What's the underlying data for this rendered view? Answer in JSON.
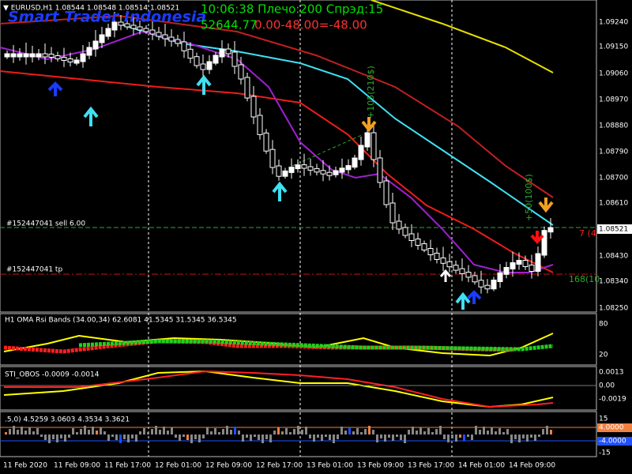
{
  "header": {
    "symbol": "▼ EURUSD,H1  1.08544 1.08548 1.08514 1.08521",
    "brand": "Smart Trader Indonesia",
    "server_info": "10:06:38 Плечо:200 Спрэд:15",
    "balance": "52644.77",
    "profit": "0.00-48.00=-48.00"
  },
  "orders": {
    "sell": "#152447041 sell 6.00",
    "tp": "#152447041 tp",
    "sell_right": "7 (4",
    "tp_right": "168(10"
  },
  "annotations": [
    "+105(210$)",
    "+50(100$)"
  ],
  "price_axis": [
    "1.09240",
    "1.09150",
    "1.09060",
    "1.08970",
    "1.08880",
    "1.08790",
    "1.08700",
    "1.08610",
    "1.08521",
    "1.08430",
    "1.08340",
    "1.08250"
  ],
  "panels": [
    {
      "label": "H1 OMA Rsi Bands (34.00,34) 62.6081 41.5345 31.5345 36.5345",
      "axis": [
        "80",
        "20"
      ]
    },
    {
      "label": "STI_OBOS -0.0009 -0.0014",
      "axis": [
        "0.0013",
        "0.00",
        "-0.0019"
      ]
    },
    {
      "label": ".5,0) 4.5259 3.0603 4.3534 3.3621",
      "axis": [
        "15",
        "4.0000",
        "-4.0000",
        "-15"
      ]
    }
  ],
  "time_axis": [
    "11 Feb 2020",
    "11 Feb 09:00",
    "11 Feb 17:00",
    "12 Feb 01:00",
    "12 Feb 09:00",
    "12 Feb 17:00",
    "13 Feb 01:00",
    "13 Feb 09:00",
    "13 Feb 17:00",
    "14 Feb 01:00",
    "14 Feb 09:00"
  ]
}
